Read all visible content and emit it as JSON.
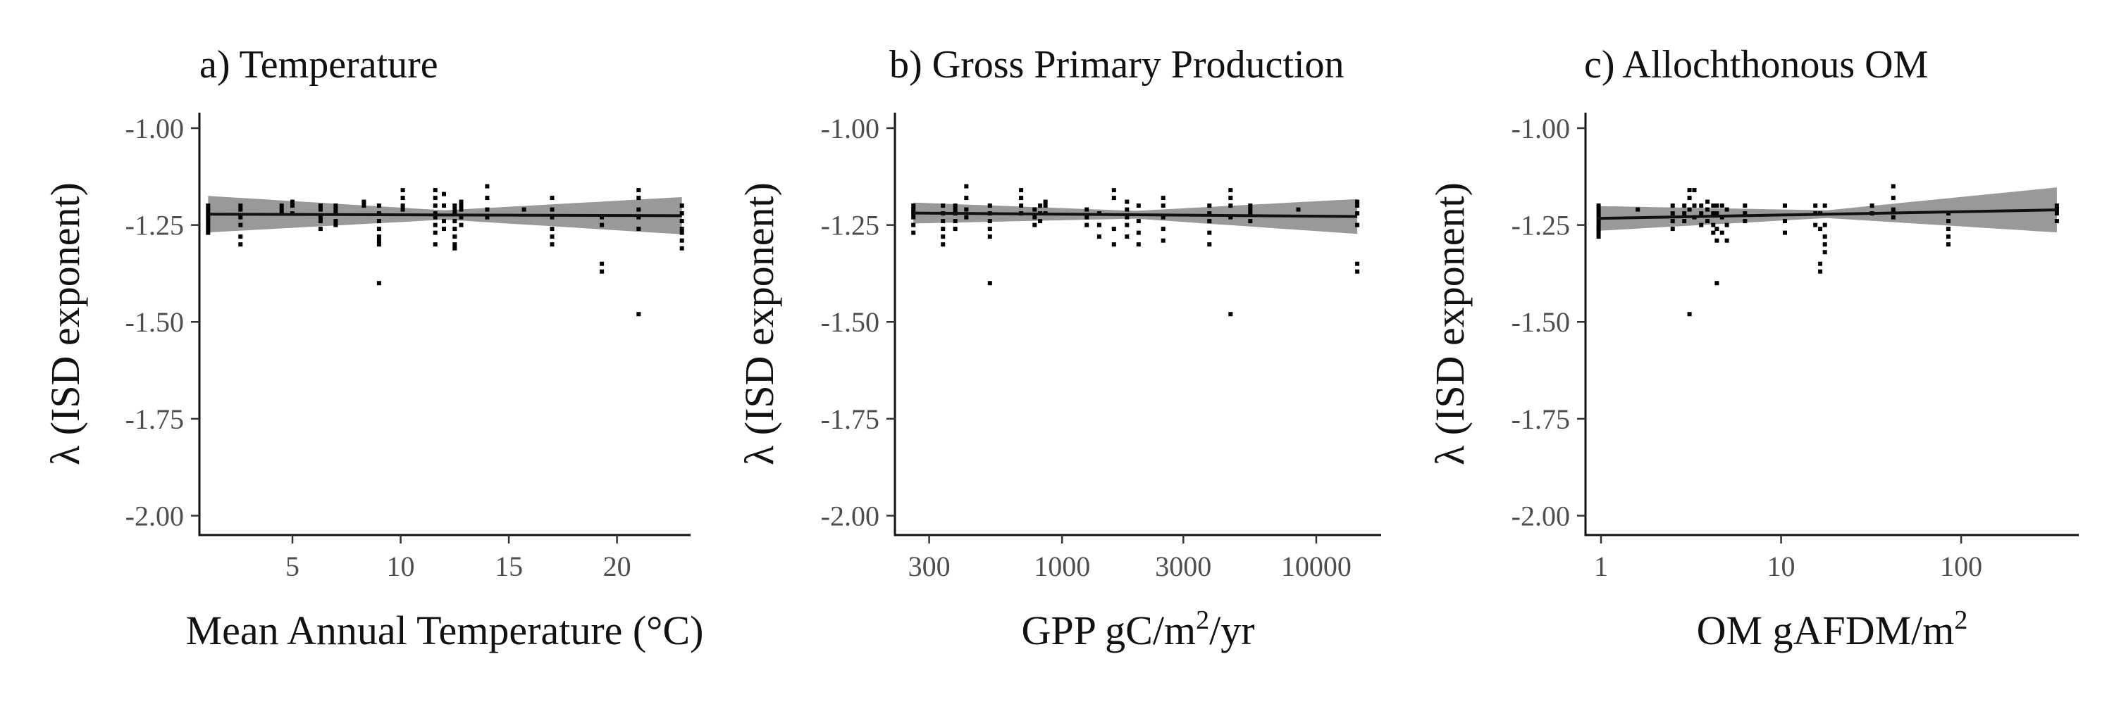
{
  "chart_data": [
    {
      "type": "scatter",
      "title": "a) Temperature",
      "xlabel": "Mean Annual Temperature (°C)",
      "ylabel": "λ (ISD exponent)",
      "xscale": "linear",
      "xlim": [
        0.7,
        23.4
      ],
      "ylim": [
        -2.05,
        -0.96
      ],
      "xticks": [
        5,
        10,
        15,
        20
      ],
      "xticklabels": [
        "5",
        "10",
        "15",
        "20"
      ],
      "yticks": [
        -1.0,
        -1.25,
        -1.5,
        -1.75,
        -2.0
      ],
      "yticklabels": [
        "-1.00",
        "-1.25",
        "-1.50",
        "-1.75",
        "-2.00"
      ],
      "fit": {
        "x": [
          1.1,
          23.0
        ],
        "y": [
          -1.222,
          -1.226
        ],
        "band_halfwidth": [
          0.047,
          0.012,
          0.048
        ]
      },
      "points": {
        "x": [
          1.1,
          1.1,
          1.1,
          1.1,
          1.1,
          1.1,
          1.1,
          1.1,
          2.6,
          2.6,
          2.6,
          2.6,
          2.6,
          2.6,
          4.5,
          4.5,
          4.5,
          5.0,
          5.0,
          5.0,
          6.3,
          6.3,
          6.3,
          6.3,
          6.3,
          7.0,
          7.0,
          7.0,
          7.0,
          7.0,
          8.3,
          8.3,
          9.0,
          9.0,
          9.0,
          9.0,
          9.0,
          9.0,
          9.0,
          9.0,
          10.1,
          10.1,
          10.1,
          10.1,
          11.6,
          11.6,
          11.6,
          11.6,
          11.6,
          11.6,
          11.6,
          11.6,
          12.0,
          12.0,
          12.0,
          12.0,
          12.5,
          12.5,
          12.5,
          12.5,
          12.5,
          12.5,
          12.5,
          12.5,
          12.8,
          12.8,
          12.8,
          12.8,
          12.8,
          14.0,
          14.0,
          14.0,
          14.0,
          15.7,
          17.0,
          17.0,
          17.0,
          17.0,
          17.0,
          17.0,
          19.3,
          19.3,
          19.3,
          19.3,
          21.0,
          21.0,
          21.0,
          21.0,
          21.0,
          21.0,
          23.0,
          23.0,
          23.0,
          23.0,
          23.0,
          23.0,
          23.0
        ],
        "y": [
          -1.2,
          -1.21,
          -1.22,
          -1.23,
          -1.24,
          -1.25,
          -1.26,
          -1.27,
          -1.2,
          -1.21,
          -1.23,
          -1.25,
          -1.28,
          -1.3,
          -1.2,
          -1.21,
          -1.22,
          -1.19,
          -1.2,
          -1.22,
          -1.2,
          -1.21,
          -1.23,
          -1.24,
          -1.26,
          -1.2,
          -1.21,
          -1.22,
          -1.24,
          -1.25,
          -1.19,
          -1.2,
          -1.2,
          -1.22,
          -1.24,
          -1.26,
          -1.28,
          -1.29,
          -1.3,
          -1.4,
          -1.16,
          -1.18,
          -1.2,
          -1.21,
          -1.16,
          -1.18,
          -1.2,
          -1.22,
          -1.23,
          -1.25,
          -1.27,
          -1.3,
          -1.17,
          -1.2,
          -1.24,
          -1.26,
          -1.2,
          -1.21,
          -1.22,
          -1.24,
          -1.26,
          -1.28,
          -1.3,
          -1.31,
          -1.19,
          -1.2,
          -1.21,
          -1.23,
          -1.25,
          -1.15,
          -1.18,
          -1.21,
          -1.23,
          -1.21,
          -1.18,
          -1.21,
          -1.23,
          -1.26,
          -1.28,
          -1.3,
          -1.23,
          -1.25,
          -1.35,
          -1.37,
          -1.16,
          -1.18,
          -1.21,
          -1.23,
          -1.26,
          -1.48,
          -1.2,
          -1.22,
          -1.24,
          -1.26,
          -1.27,
          -1.29,
          -1.31
        ]
      }
    },
    {
      "type": "scatter",
      "title": "b) Gross Primary Production",
      "xlabel": "GPP gC/m²/yr",
      "ylabel": "λ (ISD exponent)",
      "xscale": "log10",
      "xlim": [
        220,
        18000
      ],
      "ylim": [
        -2.05,
        -0.96
      ],
      "xticks": [
        300,
        1000,
        3000,
        10000
      ],
      "xticklabels": [
        "300",
        "1000",
        "3000",
        "10000"
      ],
      "yticks": [
        -1.0,
        -1.25,
        -1.5,
        -1.75,
        -2.0
      ],
      "yticklabels": [
        "-1.00",
        "-1.25",
        "-1.50",
        "-1.75",
        "-2.00"
      ],
      "fit": {
        "x": [
          260,
          14500
        ],
        "y": [
          -1.219,
          -1.228
        ],
        "band_halfwidth": [
          0.027,
          0.01,
          0.045
        ]
      },
      "points": {
        "x": [
          260,
          260,
          260,
          260,
          260,
          260,
          340,
          340,
          340,
          340,
          340,
          340,
          380,
          380,
          380,
          380,
          380,
          420,
          420,
          420,
          420,
          520,
          520,
          520,
          520,
          520,
          520,
          690,
          690,
          690,
          690,
          780,
          780,
          780,
          820,
          820,
          820,
          860,
          860,
          860,
          1250,
          1250,
          1250,
          1400,
          1400,
          1400,
          1600,
          1600,
          1600,
          1600,
          1800,
          1800,
          1800,
          1800,
          1800,
          2000,
          2000,
          2000,
          2000,
          2500,
          2500,
          2500,
          2500,
          2500,
          3800,
          3800,
          3800,
          3800,
          3800,
          4600,
          4600,
          4600,
          4600,
          4600,
          5500,
          5500,
          5500,
          5500,
          8500,
          14500,
          14500,
          14500,
          14500,
          14500,
          14500
        ],
        "y": [
          -1.2,
          -1.21,
          -1.22,
          -1.23,
          -1.25,
          -1.27,
          -1.2,
          -1.22,
          -1.24,
          -1.26,
          -1.28,
          -1.3,
          -1.2,
          -1.21,
          -1.22,
          -1.24,
          -1.26,
          -1.15,
          -1.18,
          -1.21,
          -1.23,
          -1.2,
          -1.22,
          -1.24,
          -1.26,
          -1.28,
          -1.4,
          -1.16,
          -1.18,
          -1.2,
          -1.22,
          -1.21,
          -1.23,
          -1.25,
          -1.2,
          -1.22,
          -1.24,
          -1.19,
          -1.2,
          -1.22,
          -1.21,
          -1.23,
          -1.25,
          -1.22,
          -1.25,
          -1.28,
          -1.16,
          -1.18,
          -1.26,
          -1.3,
          -1.19,
          -1.21,
          -1.23,
          -1.25,
          -1.28,
          -1.2,
          -1.24,
          -1.27,
          -1.3,
          -1.18,
          -1.2,
          -1.23,
          -1.26,
          -1.29,
          -1.2,
          -1.22,
          -1.24,
          -1.27,
          -1.3,
          -1.16,
          -1.18,
          -1.2,
          -1.23,
          -1.48,
          -1.2,
          -1.21,
          -1.22,
          -1.24,
          -1.21,
          -1.19,
          -1.2,
          -1.22,
          -1.25,
          -1.35,
          -1.37
        ]
      }
    },
    {
      "type": "scatter",
      "title": "c) Allochthonous OM",
      "xlabel": "OM gAFDM/m²",
      "ylabel": "λ (ISD exponent)",
      "xscale": "log10",
      "xlim": [
        0.82,
        450
      ],
      "ylim": [
        -2.05,
        -0.96
      ],
      "xticks": [
        1,
        10,
        100
      ],
      "xticklabels": [
        "1",
        "10",
        "100"
      ],
      "yticks": [
        -1.0,
        -1.25,
        -1.5,
        -1.75,
        -2.0
      ],
      "yticklabels": [
        "-1.00",
        "-1.25",
        "-1.50",
        "-1.75",
        "-2.00"
      ],
      "fit": {
        "x": [
          0.95,
          340
        ],
        "y": [
          -1.233,
          -1.211
        ],
        "band_halfwidth": [
          0.032,
          0.01,
          0.058
        ]
      },
      "points": {
        "x": [
          0.97,
          0.97,
          0.97,
          0.97,
          0.97,
          0.97,
          0.97,
          0.97,
          0.97,
          1.6,
          2.5,
          2.5,
          2.5,
          2.5,
          2.9,
          2.9,
          2.9,
          3.1,
          3.1,
          3.1,
          3.1,
          3.3,
          3.3,
          3.3,
          3.6,
          3.6,
          3.6,
          3.9,
          3.9,
          3.9,
          4.2,
          4.2,
          4.2,
          4.2,
          4.4,
          4.4,
          4.4,
          4.4,
          4.4,
          4.7,
          4.7,
          4.7,
          5.0,
          5.0,
          5.0,
          6.3,
          6.3,
          6.3,
          10.5,
          10.5,
          10.5,
          15.5,
          15.5,
          15.5,
          16.5,
          16.5,
          16.5,
          16.5,
          17.5,
          17.5,
          17.5,
          17.5,
          17.5,
          32,
          32,
          42,
          42,
          42,
          42,
          85,
          85,
          85,
          85,
          85,
          340,
          340,
          340,
          340
        ],
        "y": [
          -1.2,
          -1.21,
          -1.22,
          -1.23,
          -1.24,
          -1.25,
          -1.26,
          -1.27,
          -1.28,
          -1.21,
          -1.2,
          -1.22,
          -1.24,
          -1.26,
          -1.2,
          -1.22,
          -1.24,
          -1.16,
          -1.18,
          -1.21,
          -1.48,
          -1.16,
          -1.2,
          -1.23,
          -1.2,
          -1.22,
          -1.25,
          -1.19,
          -1.21,
          -1.24,
          -1.2,
          -1.22,
          -1.25,
          -1.27,
          -1.2,
          -1.22,
          -1.26,
          -1.29,
          -1.4,
          -1.2,
          -1.23,
          -1.27,
          -1.21,
          -1.25,
          -1.29,
          -1.2,
          -1.22,
          -1.24,
          -1.2,
          -1.24,
          -1.27,
          -1.2,
          -1.22,
          -1.25,
          -1.22,
          -1.26,
          -1.35,
          -1.37,
          -1.2,
          -1.25,
          -1.28,
          -1.3,
          -1.32,
          -1.2,
          -1.22,
          -1.15,
          -1.18,
          -1.21,
          -1.23,
          -1.22,
          -1.24,
          -1.26,
          -1.28,
          -1.3,
          -1.2,
          -1.21,
          -1.22,
          -1.24
        ]
      }
    }
  ]
}
